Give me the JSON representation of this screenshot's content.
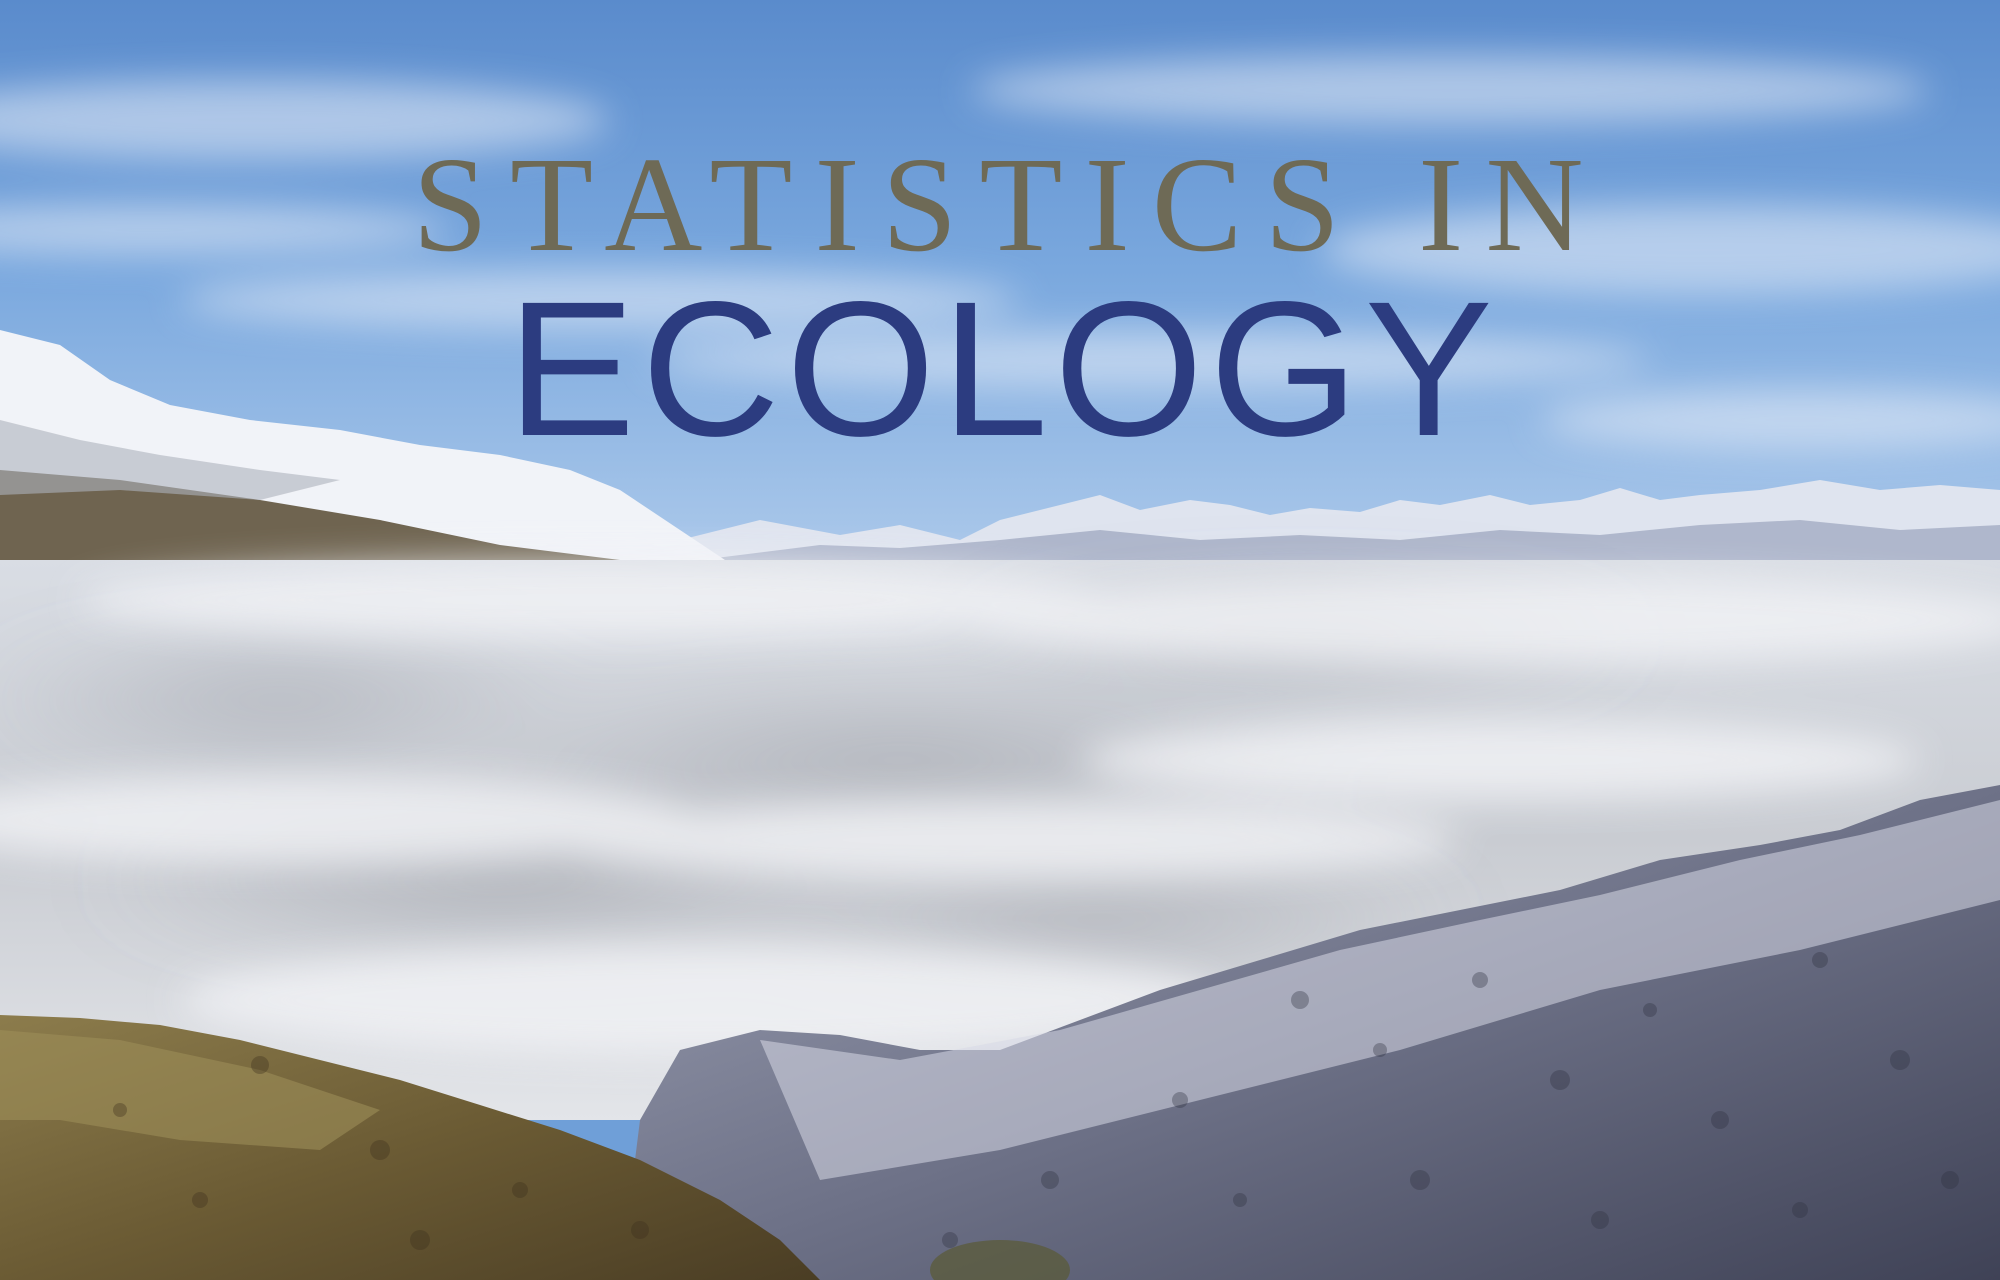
{
  "title": {
    "line1": "STATISTICS IN",
    "line2": "ECOLOGY"
  },
  "colors": {
    "line1": "#6e6a56",
    "line2": "#2c3c80",
    "sky_top": "#5b8fd0",
    "sky_bottom": "#a9c8ec",
    "cloud": "#e6e8ec",
    "snow": "#eef0f6"
  }
}
